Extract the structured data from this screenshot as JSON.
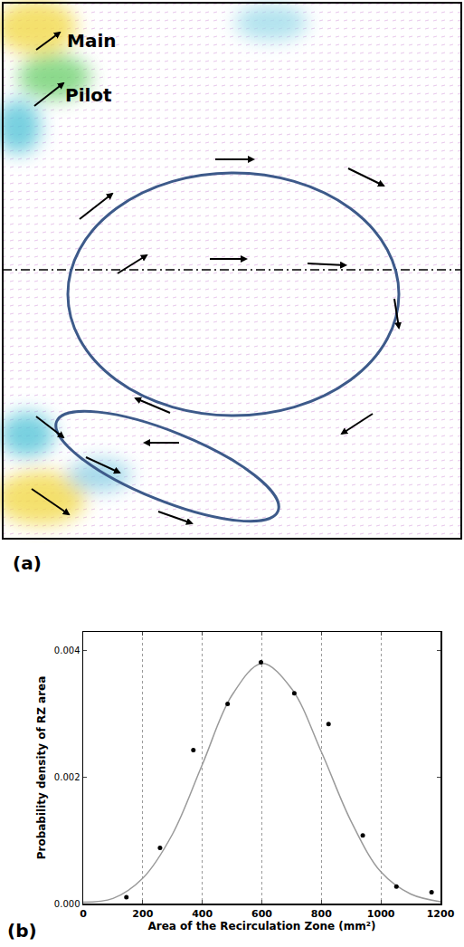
{
  "diagram": {
    "label": "(a)",
    "jets": [
      {
        "label": "Main"
      },
      {
        "label": "Pilot"
      }
    ]
  },
  "chart_data": {
    "type": "scatter",
    "panel_label": "(b)",
    "x_label": "Area of the Recirculation Zone (mm²)",
    "y_label": "Probability density of RZ area",
    "xlim": [
      0,
      1200
    ],
    "xticks": [
      0,
      200,
      400,
      600,
      800,
      1000,
      1200
    ],
    "ylim": [
      0,
      0.0043
    ],
    "yticks": [
      {
        "value": 0,
        "label": "0.000"
      },
      0.002,
      0.004
    ],
    "grid": true,
    "series": [
      {
        "type": "scatter",
        "marker": "circle",
        "color": "#000000",
        "x": [
          145,
          258,
          370,
          485,
          597,
          709,
          824,
          939,
          1052,
          1170
        ],
        "values": [
          0.0001,
          0.00088,
          0.00243,
          0.00316,
          0.00382,
          0.00333,
          0.00284,
          0.00108,
          0.00027,
          0.00018
        ]
      },
      {
        "type": "line",
        "line_style": "solid",
        "color": "#9a9a9a",
        "x": [
          0,
          100,
          200,
          300,
          400,
          500,
          600,
          700,
          800,
          900,
          1000,
          1100,
          1200
        ],
        "values": [
          2e-05,
          8e-05,
          0.0004,
          0.0011,
          0.0022,
          0.0033,
          0.0038,
          0.0034,
          0.0024,
          0.0013,
          0.0005,
          0.00015,
          3e-05
        ]
      }
    ]
  }
}
